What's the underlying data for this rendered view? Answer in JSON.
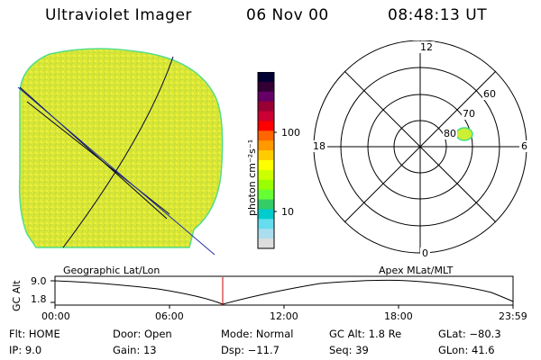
{
  "header": {
    "instrument": "Ultraviolet Imager",
    "date": "06 Nov 00",
    "time": "08:48:13 UT"
  },
  "colorbar": {
    "unit_label": "photon cm⁻²s⁻¹",
    "ticks": [
      "100",
      "10"
    ],
    "colors": [
      "#000033",
      "#330033",
      "#660066",
      "#990033",
      "#cc0033",
      "#ff0000",
      "#ff6600",
      "#ff9900",
      "#ffcc00",
      "#ffff00",
      "#ccff00",
      "#99ff00",
      "#66ff33",
      "#33cc66",
      "#00cccc",
      "#66ddee",
      "#aaddee",
      "#dddddd"
    ]
  },
  "polar_plot": {
    "mlt_labels": {
      "top": "12",
      "left": "18",
      "right": "6",
      "bottom": "0"
    },
    "lat_labels": [
      "60",
      "70",
      "80"
    ]
  },
  "timeline": {
    "left_label": "Geographic Lat/Lon",
    "right_label": "Apex MLat/MLT",
    "yaxis_label": "GC Alt",
    "y_ticks": [
      "9.0",
      "1.8"
    ],
    "x_ticks": [
      "00:00",
      "06:00",
      "12:00",
      "18:00",
      "23:59"
    ]
  },
  "info": {
    "flt": "Flt: HOME",
    "ip": "IP:  9.0",
    "door": "Door: Open",
    "gain": "Gain: 13",
    "mode": "Mode: Normal",
    "dsp": "Dsp:  −11.7",
    "gcalt": "GC Alt: 1.8 Re",
    "seq": "Seq: 39",
    "glat": "GLat: −80.3",
    "glon": "GLon:  41.6"
  },
  "colors": {
    "image_fill": "#ddee33",
    "image_edge": "#44dd88",
    "marker": "#cc0000"
  }
}
